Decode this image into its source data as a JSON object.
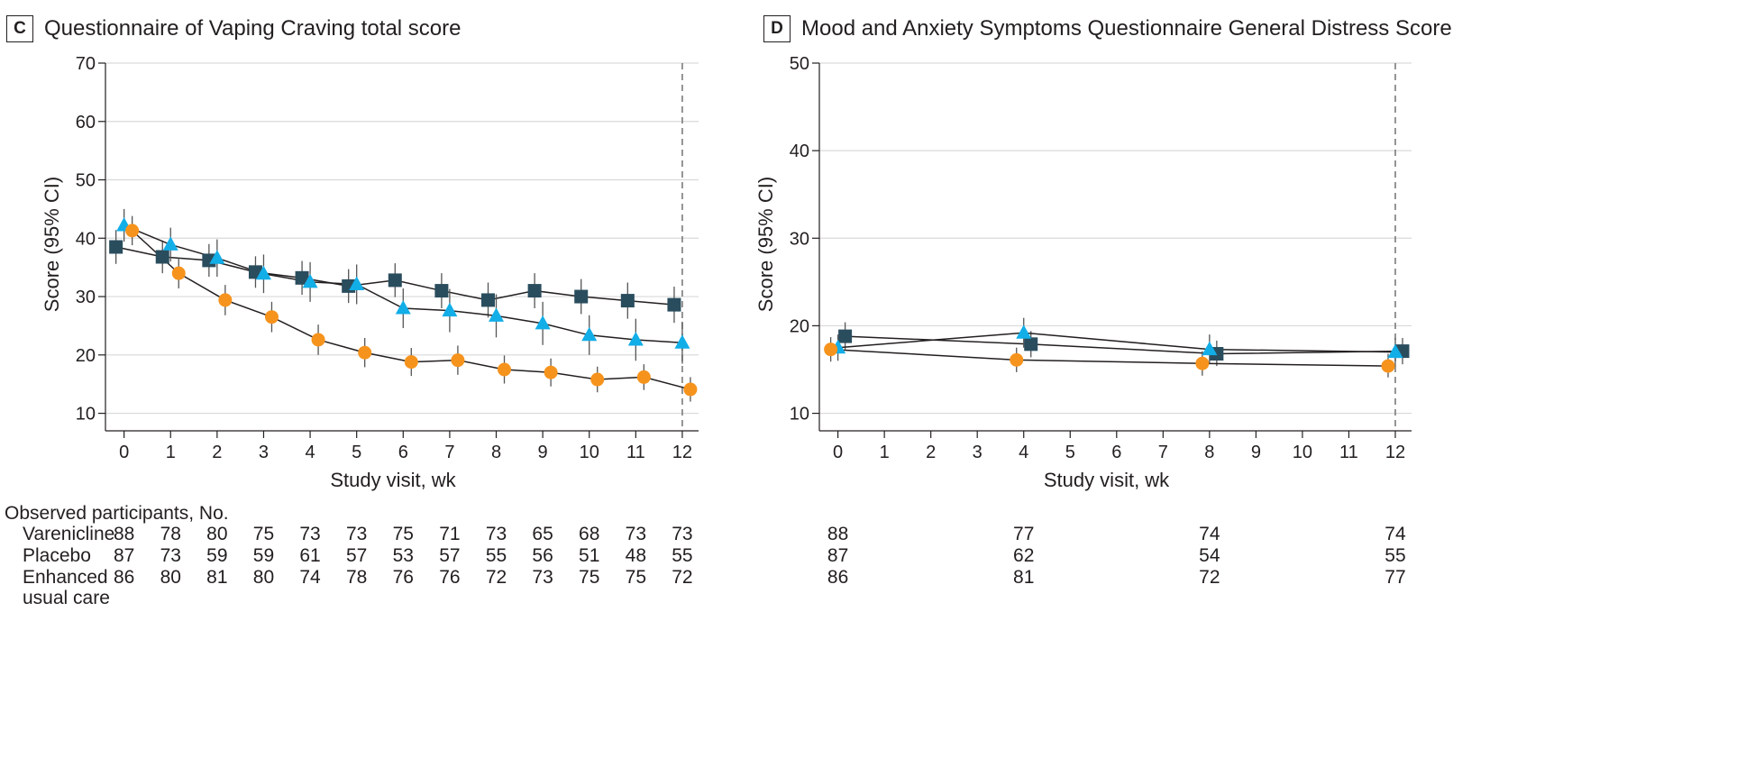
{
  "colors": {
    "varenicline": "#2a4d5e",
    "placebo": "#12aee8",
    "enhanced": "#f6931d",
    "grid": "#d9d9d9",
    "line": "#231f20"
  },
  "counts_header": "Observed participants, No.",
  "chart_data": [
    {
      "type": "line",
      "panel": "C",
      "title": "Questionnaire of Vaping Craving total score",
      "xlabel": "Study visit, wk",
      "ylabel": "Score (95% CI)",
      "xlim": [
        -0.4,
        12.35
      ],
      "ylim": [
        7,
        70
      ],
      "xticks": [
        0,
        1,
        2,
        3,
        4,
        5,
        6,
        7,
        8,
        9,
        10,
        11,
        12
      ],
      "yticks": [
        10,
        20,
        30,
        40,
        50,
        60,
        70
      ],
      "grid": true,
      "reference_line_x": 12,
      "series": [
        {
          "name": "Varenicline",
          "marker": "square",
          "color_key": "varenicline",
          "x": [
            0,
            1,
            2,
            3,
            4,
            5,
            6,
            7,
            8,
            9,
            10,
            11,
            12
          ],
          "y": [
            38.5,
            36.8,
            36.2,
            34.2,
            33.2,
            31.8,
            32.8,
            31.0,
            29.4,
            31.0,
            30.0,
            29.3,
            28.6
          ],
          "ci_low": [
            35.6,
            34.0,
            33.4,
            31.5,
            30.3,
            28.9,
            29.9,
            28.0,
            26.4,
            28.0,
            27.0,
            26.2,
            25.5
          ],
          "ci_high": [
            41.4,
            39.6,
            39.0,
            36.9,
            36.1,
            34.7,
            35.7,
            34.0,
            32.4,
            34.0,
            33.0,
            32.4,
            31.7
          ],
          "observed": [
            "88",
            "78",
            "80",
            "75",
            "73",
            "73",
            "75",
            "71",
            "73",
            "65",
            "68",
            "73",
            "73"
          ]
        },
        {
          "name": "Placebo",
          "marker": "triangle",
          "color_key": "placebo",
          "x": [
            0,
            1,
            2,
            3,
            4,
            5,
            6,
            7,
            8,
            9,
            10,
            11,
            12
          ],
          "y": [
            42.2,
            38.9,
            36.6,
            33.9,
            32.5,
            32.1,
            28.0,
            27.6,
            26.7,
            25.4,
            23.4,
            22.6,
            22.1
          ],
          "ci_low": [
            39.4,
            36.0,
            33.4,
            30.6,
            29.1,
            28.7,
            24.6,
            23.9,
            23.0,
            21.7,
            20.0,
            19.0,
            18.5
          ],
          "ci_high": [
            45.0,
            41.8,
            39.8,
            37.2,
            35.9,
            35.5,
            31.4,
            31.3,
            30.4,
            29.1,
            26.8,
            26.2,
            25.7
          ],
          "observed": [
            "87",
            "73",
            "59",
            "59",
            "61",
            "57",
            "53",
            "57",
            "55",
            "56",
            "51",
            "48",
            "55"
          ]
        },
        {
          "name": "Enhanced usual care",
          "marker": "circle",
          "color_key": "enhanced",
          "x": [
            0,
            1,
            2,
            3,
            4,
            5,
            6,
            7,
            8,
            9,
            10,
            11,
            12
          ],
          "y": [
            41.3,
            34.0,
            29.4,
            26.5,
            22.6,
            20.4,
            18.8,
            19.1,
            17.5,
            17.0,
            15.8,
            16.2,
            14.1
          ],
          "ci_low": [
            38.8,
            31.4,
            26.8,
            23.9,
            20.0,
            17.9,
            16.4,
            16.6,
            15.1,
            14.6,
            13.6,
            14.0,
            12.0
          ],
          "ci_high": [
            43.8,
            36.6,
            32.0,
            29.1,
            25.2,
            22.9,
            21.2,
            21.6,
            19.9,
            19.4,
            18.0,
            18.4,
            16.2
          ],
          "observed": [
            "86",
            "80",
            "81",
            "80",
            "74",
            "78",
            "76",
            "76",
            "72",
            "73",
            "75",
            "75",
            "72"
          ]
        }
      ]
    },
    {
      "type": "line",
      "panel": "D",
      "title": "Mood and Anxiety Symptoms Questionnaire General Distress Score",
      "xlabel": "Study visit, wk",
      "ylabel": "Score (95% CI)",
      "xlim": [
        -0.4,
        12.35
      ],
      "ylim": [
        8,
        50
      ],
      "xticks": [
        0,
        1,
        2,
        3,
        4,
        5,
        6,
        7,
        8,
        9,
        10,
        11,
        12
      ],
      "yticks": [
        10,
        20,
        30,
        40,
        50
      ],
      "grid": true,
      "reference_line_x": 12,
      "series": [
        {
          "name": "Varenicline",
          "marker": "square",
          "color_key": "varenicline",
          "x": [
            0,
            4,
            8,
            12
          ],
          "y": [
            18.8,
            17.9,
            16.8,
            17.1
          ],
          "ci_low": [
            17.3,
            16.4,
            15.4,
            15.6
          ],
          "ci_high": [
            20.4,
            19.4,
            18.3,
            18.6
          ],
          "observed": [
            "88",
            "77",
            "74",
            "74"
          ]
        },
        {
          "name": "Placebo",
          "marker": "triangle",
          "color_key": "placebo",
          "x": [
            0,
            4,
            8,
            12
          ],
          "y": [
            17.5,
            19.2,
            17.3,
            17.0
          ],
          "ci_low": [
            16.0,
            17.5,
            15.6,
            15.4
          ],
          "ci_high": [
            19.0,
            20.9,
            19.0,
            18.6
          ],
          "observed": [
            "87",
            "62",
            "54",
            "55"
          ]
        },
        {
          "name": "Enhanced usual care",
          "marker": "circle",
          "color_key": "enhanced",
          "x": [
            0,
            4,
            8,
            12
          ],
          "y": [
            17.3,
            16.1,
            15.7,
            15.4
          ],
          "ci_low": [
            15.9,
            14.7,
            14.3,
            14.1
          ],
          "ci_high": [
            18.7,
            17.5,
            17.1,
            16.8
          ],
          "observed": [
            "86",
            "81",
            "72",
            "77"
          ]
        }
      ]
    }
  ],
  "row_labels": [
    {
      "lines": [
        "Varenicline"
      ]
    },
    {
      "lines": [
        "Placebo"
      ]
    },
    {
      "lines": [
        "Enhanced",
        "usual care"
      ]
    }
  ]
}
